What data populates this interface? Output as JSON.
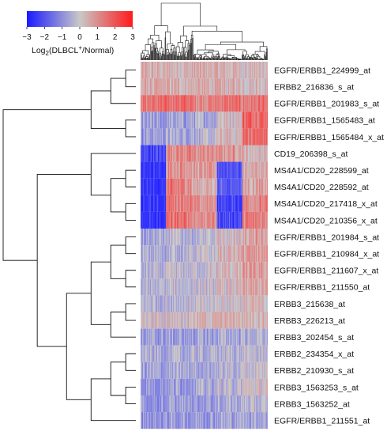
{
  "chart_data": {
    "type": "heatmap",
    "title": "",
    "colorbar": {
      "label_prefix": "Log",
      "label_sub": "2",
      "label_main": "(DLBCL",
      "label_sup": "+",
      "label_suffix": "/Normal)",
      "min": -3,
      "max": 3,
      "ticks": [
        "-3",
        "-2",
        "-1",
        "0",
        "1",
        "2",
        "3"
      ],
      "colors": {
        "low": "#1a1aff",
        "mid": "#c8c8c8",
        "high": "#ff1a1a"
      }
    },
    "rows": [
      {
        "label": "EGFR/ERBB1_224999_at",
        "pattern": [
          0.45,
          0.45,
          0.5,
          0.45,
          0.35
        ]
      },
      {
        "label": "ERBB2_216836_s_at",
        "pattern": [
          0.55,
          0.5,
          0.5,
          0.45,
          0.4
        ]
      },
      {
        "label": "EGFR/ERBB1_201983_s_at",
        "pattern": [
          1.6,
          1.8,
          1.4,
          1.6,
          1.5
        ]
      },
      {
        "label": "EGFR/ERBB1_1565483_at",
        "pattern": [
          -1.0,
          -0.8,
          -0.6,
          0.3,
          2.0
        ]
      },
      {
        "label": "EGFR/ERBB1_1565484_x_at",
        "pattern": [
          -0.8,
          -0.6,
          -0.4,
          0.3,
          1.8
        ]
      },
      {
        "label": "CD19_206398_s_at",
        "pattern": [
          -2.5,
          1.3,
          1.1,
          1.0,
          0.4
        ]
      },
      {
        "label": "MS4A1/CD20_228599_at",
        "pattern": [
          -3.0,
          1.2,
          0.8,
          -2.2,
          0.5
        ]
      },
      {
        "label": "MS4A1/CD20_228592_at",
        "pattern": [
          -3.0,
          1.4,
          0.6,
          -2.0,
          0.7
        ]
      },
      {
        "label": "MS4A1/CD20_217418_x_at",
        "pattern": [
          -3.0,
          1.6,
          1.0,
          -2.6,
          1.3
        ]
      },
      {
        "label": "MS4A1/CD20_210356_x_at",
        "pattern": [
          -3.0,
          1.6,
          1.2,
          -2.4,
          1.4
        ]
      },
      {
        "label": "EGFR/ERBB1_201984_s_at",
        "pattern": [
          -0.6,
          -0.4,
          -0.4,
          0.2,
          0.7
        ]
      },
      {
        "label": "EGFR/ERBB1_210984_x_at",
        "pattern": [
          -0.6,
          -0.4,
          -0.2,
          0.4,
          0.9
        ]
      },
      {
        "label": "EGFR/ERBB1_211607_x_at",
        "pattern": [
          -0.5,
          -0.3,
          -0.2,
          0.3,
          0.8
        ]
      },
      {
        "label": "EGFR/ERBB1_211550_at",
        "pattern": [
          -0.5,
          -0.3,
          -0.2,
          0.2,
          0.6
        ]
      },
      {
        "label": "ERBB3_215638_at",
        "pattern": [
          -0.4,
          -0.3,
          -0.2,
          0.1,
          0.3
        ]
      },
      {
        "label": "ERBB3_226213_at",
        "pattern": [
          0.1,
          0.3,
          0.4,
          0.5,
          0.5
        ]
      },
      {
        "label": "ERBB3_202454_s_at",
        "pattern": [
          -0.9,
          -0.9,
          -0.8,
          -0.6,
          -0.5
        ]
      },
      {
        "label": "ERBB2_234354_x_at",
        "pattern": [
          -0.6,
          -0.6,
          -0.5,
          -0.4,
          -0.3
        ]
      },
      {
        "label": "ERBB2_210930_s_at",
        "pattern": [
          -0.8,
          -0.7,
          -0.6,
          -0.4,
          -0.1
        ]
      },
      {
        "label": "ERBB3_1563253_s_at",
        "pattern": [
          -0.9,
          -0.8,
          -0.6,
          -0.3,
          0.1
        ]
      },
      {
        "label": "ERBB3_1563252_at",
        "pattern": [
          -1.0,
          -0.9,
          -0.8,
          -0.6,
          -0.4
        ]
      },
      {
        "label": "EGFR/ERBB1_211551_at",
        "pattern": [
          -1.0,
          -0.9,
          -0.8,
          -0.7,
          -0.6
        ]
      }
    ],
    "n_samples": 200,
    "row_dendrogram_order": [
      [
        [
          [
            0,
            1
          ],
          2
        ],
        [
          3,
          4
        ]
      ],
      [
        [
          5,
          [
            [
              6,
              7
            ],
            [
              8,
              9
            ]
          ]
        ],
        [
          [
            [
              [
                10,
                11
              ],
              [
                12,
                13
              ]
            ],
            [
              [
                14,
                15
              ],
              16
            ]
          ],
          [
            [
              [
                17,
                18
              ],
              [
                19,
                20
              ]
            ],
            21
          ]
        ]
      ]
    ]
  }
}
